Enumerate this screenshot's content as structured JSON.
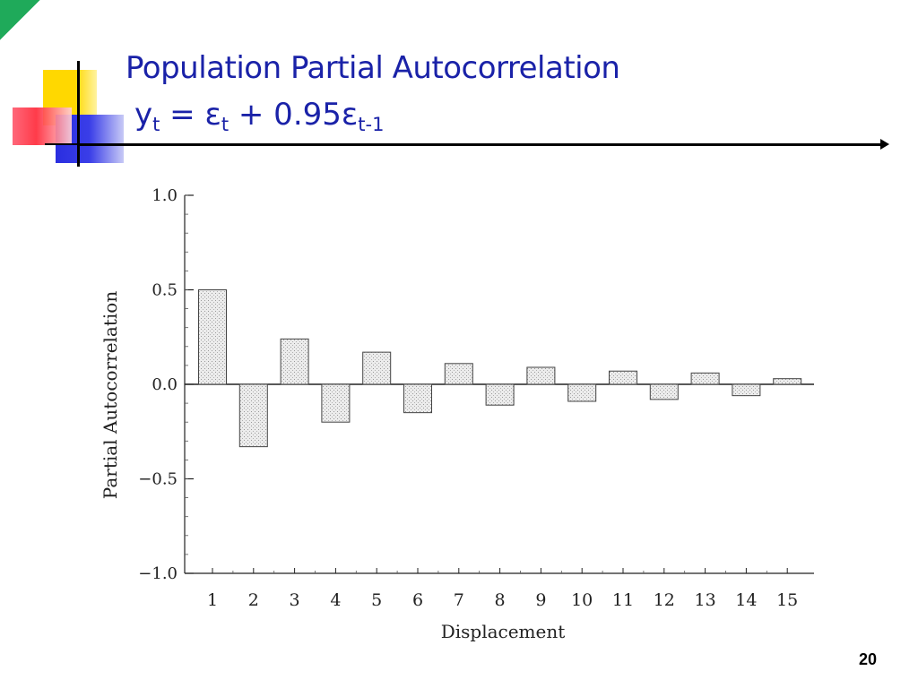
{
  "slide": {
    "title": "Population Partial Autocorrelation",
    "equation": {
      "lhs_var": "y",
      "lhs_sub": "t",
      "op1": " = ε",
      "eps_sub": "t",
      "op2": " + 0.95ε",
      "eps2_sub": "t-1"
    },
    "slide_number": "20"
  },
  "colors": {
    "title": "#1a22a8",
    "bar_fill": "#e4e4e4",
    "bar_stroke": "#444444"
  },
  "chart_data": {
    "type": "bar",
    "xlabel": "Displacement",
    "ylabel": "Partial Autocorrelation",
    "ylim": [
      -1.0,
      1.0
    ],
    "yticks": [
      1.0,
      0.5,
      0.0,
      -0.5,
      -1.0
    ],
    "ytick_labels": [
      "1.0",
      "0.5",
      "0.0",
      "−0.5",
      "−1.0"
    ],
    "categories": [
      "1",
      "2",
      "3",
      "4",
      "5",
      "6",
      "7",
      "8",
      "9",
      "10",
      "11",
      "12",
      "13",
      "14",
      "15"
    ],
    "values": [
      0.5,
      -0.33,
      0.24,
      -0.2,
      0.17,
      -0.15,
      0.11,
      -0.11,
      0.09,
      -0.09,
      0.07,
      -0.08,
      0.06,
      -0.06,
      0.03
    ],
    "grid": false,
    "legend": "none"
  }
}
